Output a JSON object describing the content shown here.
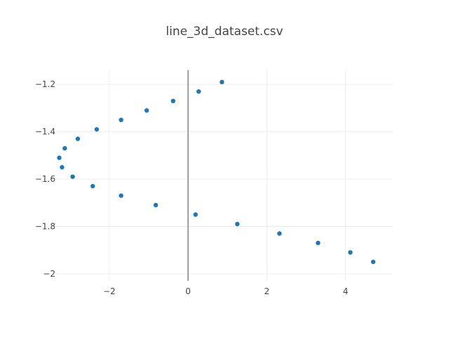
{
  "chart_data": {
    "type": "scatter",
    "title": "line_3d_dataset.csv",
    "xlabel": "",
    "ylabel": "",
    "xlim": [
      -3.35,
      5.2
    ],
    "ylim": [
      -2.03,
      -1.14
    ],
    "xticks": [
      -2,
      0,
      2,
      4
    ],
    "yticks": [
      -1.2,
      -1.4,
      -1.6,
      -1.8,
      -2
    ],
    "xtick_labels": [
      "−2",
      "0",
      "2",
      "4"
    ],
    "ytick_labels": [
      "−1.2",
      "−1.4",
      "−1.6",
      "−1.8",
      "−2"
    ],
    "grid": true,
    "legend": "none",
    "marker_color": "#1f77b4",
    "series": [
      {
        "x": [
          0.86,
          0.27,
          -0.38,
          -1.05,
          -1.7,
          -2.32,
          -2.8,
          -3.13,
          -3.27,
          -3.2,
          -2.93,
          -2.42,
          -1.7,
          -0.82,
          0.19,
          1.25,
          2.32,
          3.3,
          4.12,
          4.7
        ],
        "y": [
          -1.19,
          -1.23,
          -1.27,
          -1.31,
          -1.35,
          -1.39,
          -1.43,
          -1.47,
          -1.51,
          -1.55,
          -1.59,
          -1.63,
          -1.67,
          -1.71,
          -1.75,
          -1.79,
          -1.83,
          -1.87,
          -1.91,
          -1.95
        ]
      }
    ]
  }
}
